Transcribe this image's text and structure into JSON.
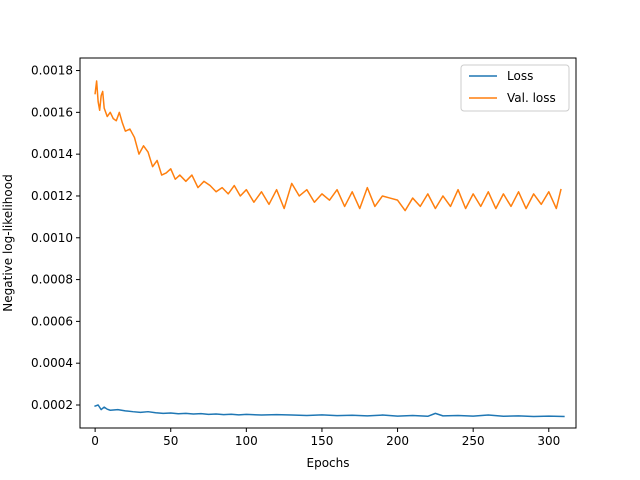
{
  "chart_data": {
    "type": "line",
    "xlabel": "Epochs",
    "ylabel": "Negative log-likelihood",
    "xlim": [
      -10,
      318
    ],
    "ylim": [
      9e-05,
      0.00186
    ],
    "xticks": [
      0,
      50,
      100,
      150,
      200,
      250,
      300
    ],
    "yticks": [
      0.0002,
      0.0004,
      0.0006,
      0.0008,
      0.001,
      0.0012,
      0.0014,
      0.0016,
      0.0018
    ],
    "ytick_labels": [
      "0.0002",
      "0.0004",
      "0.0006",
      "0.0008",
      "0.0010",
      "0.0012",
      "0.0014",
      "0.0016",
      "0.0018"
    ],
    "grid": false,
    "legend_position": "top-right",
    "series": [
      {
        "name": "Loss",
        "color": "#1f77b4",
        "x": [
          0,
          2,
          4,
          6,
          8,
          10,
          15,
          20,
          25,
          30,
          35,
          40,
          45,
          50,
          55,
          60,
          65,
          70,
          75,
          80,
          85,
          90,
          95,
          100,
          110,
          120,
          130,
          140,
          150,
          160,
          170,
          180,
          190,
          200,
          210,
          220,
          225,
          230,
          240,
          250,
          260,
          270,
          280,
          290,
          300,
          310
        ],
        "y": [
          0.000195,
          0.0002,
          0.000178,
          0.00019,
          0.00018,
          0.000175,
          0.000178,
          0.000172,
          0.000168,
          0.000165,
          0.000168,
          0.000163,
          0.00016,
          0.000162,
          0.000158,
          0.00016,
          0.000157,
          0.000159,
          0.000155,
          0.000157,
          0.000154,
          0.000156,
          0.000153,
          0.000155,
          0.000152,
          0.000154,
          0.000152,
          0.00015,
          0.000153,
          0.000149,
          0.000151,
          0.000148,
          0.000152,
          0.000147,
          0.00015,
          0.000146,
          0.00016,
          0.000148,
          0.00015,
          0.000147,
          0.000152,
          0.000146,
          0.000148,
          0.000145,
          0.000147,
          0.000145
        ]
      },
      {
        "name": "Val. loss",
        "color": "#ff7f0e",
        "x": [
          0,
          1,
          2,
          3,
          4,
          5,
          6,
          8,
          10,
          12,
          14,
          16,
          18,
          20,
          23,
          26,
          29,
          32,
          35,
          38,
          41,
          44,
          47,
          50,
          53,
          56,
          60,
          64,
          68,
          72,
          76,
          80,
          84,
          88,
          92,
          96,
          100,
          105,
          110,
          115,
          120,
          125,
          130,
          135,
          140,
          145,
          150,
          155,
          160,
          165,
          170,
          175,
          180,
          185,
          190,
          195,
          200,
          205,
          210,
          215,
          220,
          225,
          230,
          235,
          240,
          245,
          250,
          255,
          260,
          265,
          270,
          275,
          280,
          285,
          290,
          295,
          300,
          305,
          308
        ],
        "y": [
          0.00169,
          0.00175,
          0.00165,
          0.00161,
          0.00168,
          0.0017,
          0.00162,
          0.00158,
          0.0016,
          0.00157,
          0.00156,
          0.0016,
          0.00155,
          0.00151,
          0.00152,
          0.00148,
          0.0014,
          0.00144,
          0.00141,
          0.00134,
          0.00137,
          0.0013,
          0.00131,
          0.00133,
          0.00128,
          0.0013,
          0.00127,
          0.0013,
          0.00124,
          0.00127,
          0.00125,
          0.00122,
          0.00124,
          0.00121,
          0.00125,
          0.0012,
          0.00123,
          0.00117,
          0.00122,
          0.00116,
          0.00123,
          0.00114,
          0.00126,
          0.0012,
          0.00123,
          0.00117,
          0.00121,
          0.00118,
          0.00123,
          0.00115,
          0.00122,
          0.00114,
          0.00124,
          0.00115,
          0.0012,
          0.00119,
          0.00118,
          0.00113,
          0.00119,
          0.00115,
          0.00121,
          0.00114,
          0.0012,
          0.00115,
          0.00123,
          0.00114,
          0.00121,
          0.00115,
          0.00122,
          0.00114,
          0.00121,
          0.00115,
          0.00122,
          0.00114,
          0.00121,
          0.00116,
          0.00122,
          0.00114,
          0.00123
        ]
      }
    ]
  }
}
